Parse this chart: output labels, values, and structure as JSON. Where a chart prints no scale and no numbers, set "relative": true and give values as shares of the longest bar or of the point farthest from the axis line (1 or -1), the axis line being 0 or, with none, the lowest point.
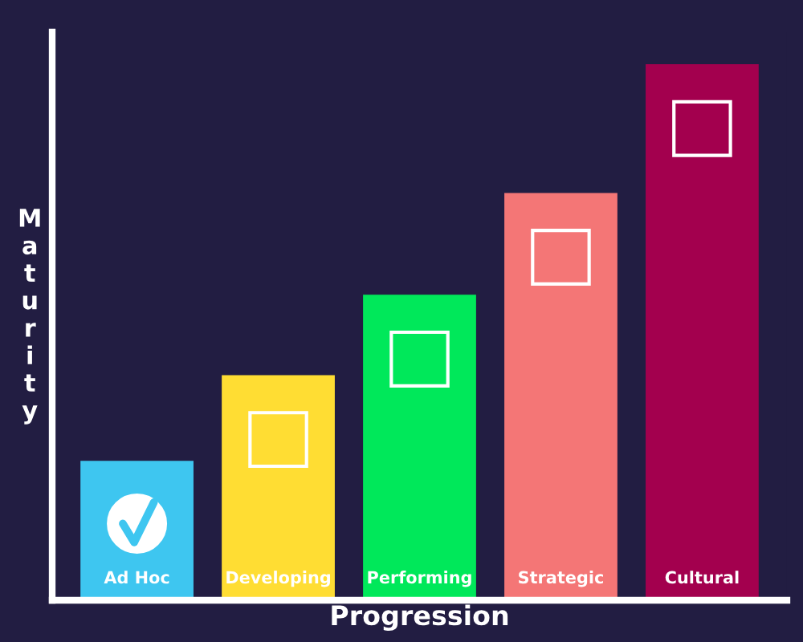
{
  "chart_data": {
    "type": "bar",
    "relative": true,
    "xlabel": "Progression",
    "ylabel": "Maturity",
    "categories": [
      "Ad Hoc",
      "Developing",
      "Performing",
      "Strategic",
      "Cultural"
    ],
    "values": [
      0.26,
      0.42,
      0.57,
      0.76,
      1
    ],
    "colors": [
      "#3ec6f0",
      "#ffdd33",
      "#00e85a",
      "#f47676",
      "#a3004e"
    ],
    "legend": false
  }
}
